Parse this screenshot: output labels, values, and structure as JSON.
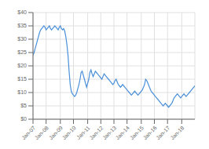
{
  "chart_data": {
    "type": "line",
    "color": "#4a90d9",
    "grid": true,
    "xlim": [
      0,
      148
    ],
    "xticks": [
      {
        "value": 0,
        "label": "Jan-07"
      },
      {
        "value": 12,
        "label": "Jan-08"
      },
      {
        "value": 25,
        "label": "Jan-09"
      },
      {
        "value": 37,
        "label": "Jan-10"
      },
      {
        "value": 50,
        "label": "Jan-11"
      },
      {
        "value": 62,
        "label": "Jan-12"
      },
      {
        "value": 74,
        "label": "Jan-13"
      },
      {
        "value": 86,
        "label": "Jan-14"
      },
      {
        "value": 99,
        "label": "Jan-15"
      },
      {
        "value": 111,
        "label": "Jan-16"
      },
      {
        "value": 123,
        "label": "Jan-17"
      },
      {
        "value": 136,
        "label": "Jan-18"
      }
    ],
    "ylim": [
      0,
      40
    ],
    "yticks": [
      {
        "value": 0,
        "label": "$0"
      },
      {
        "value": 5,
        "label": "$5"
      },
      {
        "value": 10,
        "label": "$10"
      },
      {
        "value": 15,
        "label": "$15"
      },
      {
        "value": 20,
        "label": "$20"
      },
      {
        "value": 25,
        "label": "$25"
      },
      {
        "value": 30,
        "label": "$30"
      },
      {
        "value": 35,
        "label": "$35"
      },
      {
        "value": 40,
        "label": "$40"
      }
    ],
    "x": [
      0,
      1,
      2,
      3,
      4,
      5,
      6,
      7,
      8,
      9,
      10,
      11,
      12,
      13,
      14,
      15,
      16,
      17,
      18,
      19,
      20,
      21,
      22,
      23,
      24,
      25,
      26,
      27,
      28,
      29,
      30,
      31,
      32,
      33,
      34,
      35,
      36,
      37,
      38,
      39,
      40,
      41,
      42,
      43,
      44,
      45,
      46,
      47,
      48,
      49,
      50,
      51,
      52,
      53,
      54,
      55,
      56,
      57,
      58,
      59,
      60,
      61,
      62,
      63,
      64,
      65,
      66,
      67,
      68,
      69,
      70,
      71,
      72,
      73,
      74,
      75,
      76,
      77,
      78,
      79,
      80,
      81,
      82,
      83,
      84,
      85,
      86,
      87,
      88,
      89,
      90,
      91,
      92,
      93,
      94,
      95,
      96,
      97,
      98,
      99,
      100,
      101,
      102,
      103,
      104,
      105,
      106,
      107,
      108,
      109,
      110,
      111,
      112,
      113,
      114,
      115,
      116,
      117,
      118,
      119,
      120,
      121,
      122,
      123,
      124,
      125,
      126,
      127,
      128,
      129,
      130,
      131,
      132,
      133,
      134,
      135,
      136,
      137,
      138,
      139,
      140,
      141,
      142,
      143,
      144,
      145,
      146,
      147,
      148
    ],
    "values": [
      24.0,
      25.0,
      26.5,
      28.0,
      29.5,
      31.0,
      32.5,
      33.5,
      34.0,
      34.5,
      35.0,
      34.5,
      33.5,
      34.0,
      34.5,
      35.0,
      34.0,
      33.5,
      34.0,
      34.5,
      35.0,
      34.5,
      34.0,
      33.5,
      34.5,
      35.0,
      34.0,
      33.5,
      34.0,
      33.0,
      31.0,
      28.0,
      24.0,
      18.0,
      13.0,
      10.5,
      9.5,
      9.0,
      8.5,
      9.0,
      10.0,
      11.5,
      13.0,
      15.0,
      17.5,
      18.0,
      16.5,
      15.0,
      13.5,
      12.0,
      13.5,
      15.0,
      17.5,
      18.5,
      17.0,
      16.0,
      17.0,
      18.0,
      17.5,
      17.0,
      16.5,
      16.0,
      15.5,
      15.0,
      16.0,
      17.0,
      16.5,
      16.0,
      15.5,
      15.0,
      14.5,
      14.0,
      13.5,
      13.0,
      13.5,
      14.5,
      15.0,
      14.0,
      13.0,
      12.5,
      12.0,
      12.5,
      13.0,
      12.5,
      12.0,
      11.5,
      11.0,
      10.5,
      10.0,
      9.5,
      9.0,
      9.5,
      10.0,
      10.5,
      10.0,
      9.5,
      9.0,
      9.5,
      10.0,
      10.5,
      11.0,
      12.0,
      13.0,
      15.0,
      14.5,
      13.5,
      12.5,
      11.5,
      10.5,
      10.0,
      9.5,
      9.0,
      8.5,
      8.0,
      7.5,
      7.0,
      6.5,
      6.0,
      5.5,
      5.0,
      5.5,
      6.0,
      5.5,
      5.0,
      4.5,
      5.0,
      5.5,
      6.0,
      7.0,
      8.0,
      8.5,
      9.0,
      9.5,
      9.0,
      8.5,
      8.0,
      8.5,
      9.0,
      9.5,
      9.0,
      8.5,
      9.0,
      9.5,
      10.0,
      10.5,
      11.0,
      11.5,
      12.0,
      12.5
    ]
  }
}
